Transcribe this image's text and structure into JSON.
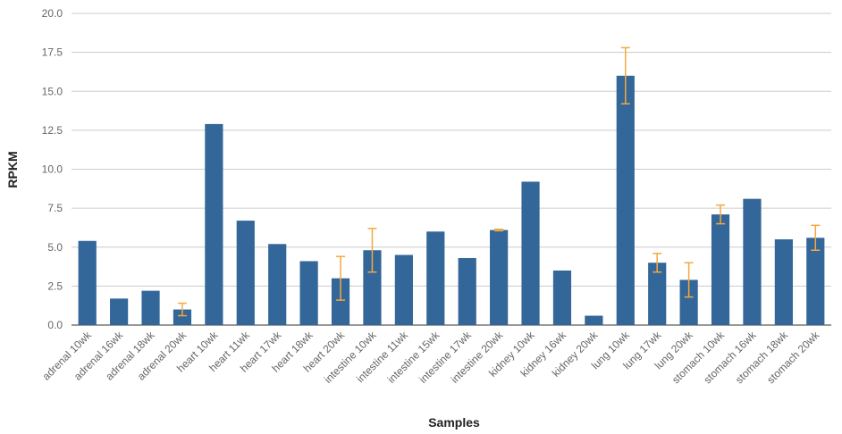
{
  "chart_data": {
    "type": "bar",
    "title": "",
    "xlabel": "Samples",
    "ylabel": "RPKM",
    "ylim": [
      0,
      20
    ],
    "yticks": [
      "0.0",
      "2.5",
      "5.0",
      "7.5",
      "10.0",
      "12.5",
      "15.0",
      "17.5",
      "20.0"
    ],
    "grid": true,
    "legend": "none",
    "bar_color": "#336699",
    "error_color": "#f4a93f",
    "categories": [
      "adrenal 10wk",
      "adrenal 16wk",
      "adrenal 18wk",
      "adrenal 20wk",
      "heart 10wk",
      "heart 11wk",
      "heart 17wk",
      "heart 18wk",
      "heart 20wk",
      "intestine 10wk",
      "intestine 11wk",
      "intestine 15wk",
      "intestine 17wk",
      "intestine 20wk",
      "kidney 10wk",
      "kidney 16wk",
      "kidney 20wk",
      "lung 10wk",
      "lung 17wk",
      "lung 20wk",
      "stomach 10wk",
      "stomach 16wk",
      "stomach 18wk",
      "stomach 20wk"
    ],
    "values": [
      5.4,
      1.7,
      2.2,
      1.0,
      12.9,
      6.7,
      5.2,
      4.1,
      3.0,
      4.8,
      4.5,
      6.0,
      4.3,
      6.1,
      9.2,
      3.5,
      0.6,
      16.0,
      4.0,
      2.9,
      7.1,
      8.1,
      5.5,
      5.6
    ],
    "error": [
      null,
      null,
      null,
      0.4,
      null,
      null,
      null,
      null,
      1.4,
      1.4,
      null,
      null,
      null,
      0.05,
      null,
      null,
      null,
      1.8,
      0.6,
      1.1,
      0.6,
      null,
      null,
      0.8
    ]
  }
}
